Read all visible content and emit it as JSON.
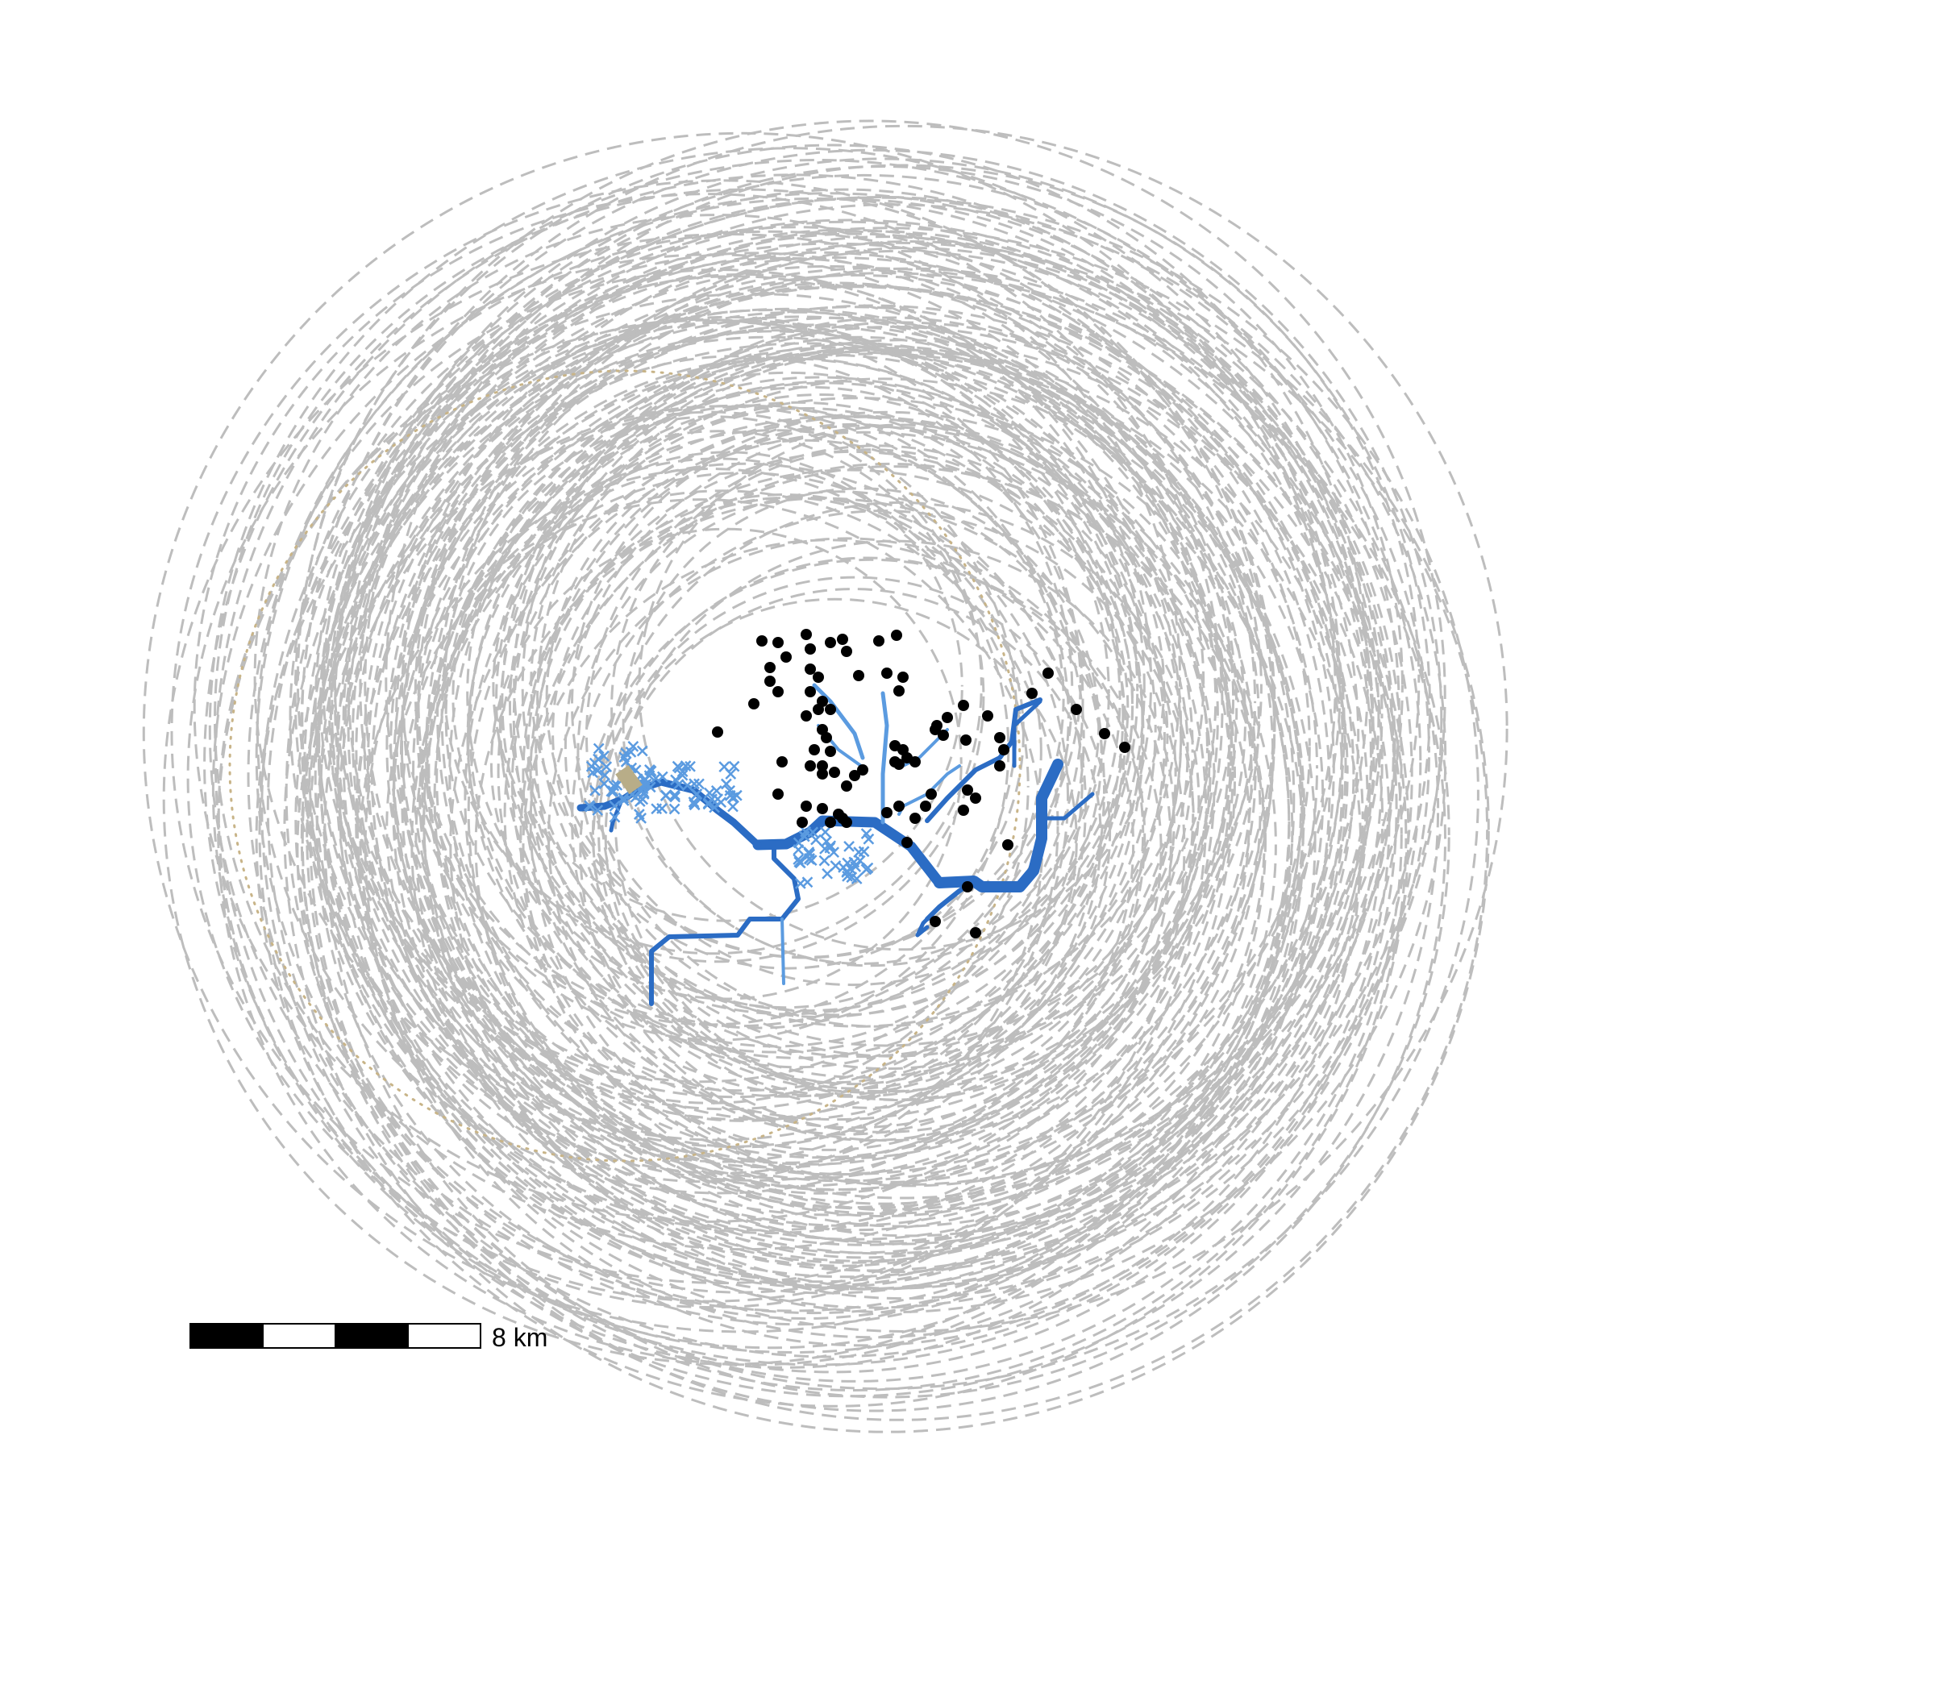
{
  "scale_bar": {
    "label": "8 km"
  },
  "colors": {
    "buffer_rings": "#bdbdbd",
    "boundary_dotted": "#c8b488",
    "river": "#2b6cc4",
    "river_light": "#5b9be0",
    "sites": "#000000",
    "highlight_patch": "#b8ad88"
  },
  "legend": null
}
